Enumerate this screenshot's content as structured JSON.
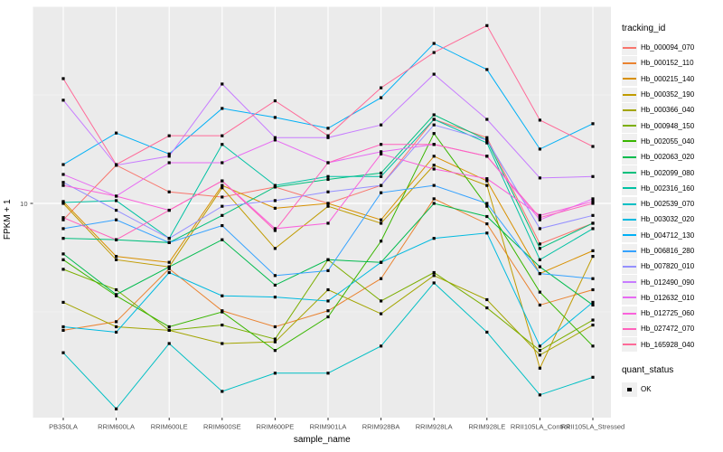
{
  "chart_data": {
    "type": "line",
    "title": "",
    "xlabel": "sample_name",
    "ylabel": "FPKM + 1",
    "y_scale": "log10",
    "y_tick_labels": [
      "10"
    ],
    "y_tick_values": [
      10
    ],
    "ylim_approx": [
      1.03,
      80
    ],
    "grid": true,
    "panel_bg": "#EBEBEB",
    "grid_color": "#FFFFFF",
    "tick_color": "#333333",
    "tick_label_color": "#4D4D4D",
    "point_shape": "square",
    "point_color": "#000000",
    "categories": [
      "PB350LA",
      "RRIM600LA",
      "RRIM600LE",
      "RRIM600SE",
      "RRIM600PE",
      "RRIM901LA",
      "RRIM928BA",
      "RRIM928LA",
      "RRIM928LE",
      "RRII105LA_Control",
      "RRII105LA_Stressed"
    ],
    "legend": {
      "title": "tracking_id",
      "position": "right"
    },
    "quant_status": {
      "title": "quant_status",
      "items": [
        {
          "label": "OK",
          "shape": "square",
          "color": "#000000"
        }
      ]
    },
    "series": [
      {
        "name": "Hb_000094_070",
        "color": "#F8766D",
        "values": [
          8.4,
          15.0,
          11.3,
          10.7,
          11.9,
          10.0,
          12.1,
          24.4,
          20.1,
          6.5,
          8.1
        ]
      },
      {
        "name": "Hb_000152_110",
        "color": "#EA8331",
        "values": [
          2.6,
          2.85,
          5.0,
          3.2,
          2.7,
          3.2,
          4.5,
          10.5,
          8.05,
          3.4,
          4.0
        ]
      },
      {
        "name": "Hb_000215_140",
        "color": "#D89000",
        "values": [
          10.2,
          5.7,
          5.35,
          12.1,
          9.5,
          10.0,
          8.4,
          16.5,
          12.7,
          4.75,
          6.05
        ]
      },
      {
        "name": "Hb_000352_190",
        "color": "#C09B00",
        "values": [
          10.0,
          5.5,
          5.1,
          11.8,
          6.2,
          9.7,
          8.1,
          15.0,
          12.1,
          1.74,
          5.7
        ]
      },
      {
        "name": "Hb_000366_040",
        "color": "#A3A500",
        "values": [
          3.5,
          2.7,
          2.6,
          2.26,
          2.3,
          4.0,
          3.1,
          4.65,
          3.6,
          2.0,
          2.75
        ]
      },
      {
        "name": "Hb_000948_150",
        "color": "#7CAE00",
        "values": [
          4.97,
          4.0,
          2.6,
          2.75,
          2.37,
          5.5,
          3.55,
          4.8,
          3.3,
          2.1,
          2.9
        ]
      },
      {
        "name": "Hb_002055_040",
        "color": "#39B600",
        "values": [
          5.5,
          3.75,
          2.7,
          3.16,
          2.1,
          3.0,
          6.7,
          21.0,
          9.7,
          3.9,
          2.2
        ]
      },
      {
        "name": "Hb_002063_020",
        "color": "#00BB4E",
        "values": [
          5.85,
          3.8,
          5.1,
          6.8,
          4.2,
          5.5,
          5.35,
          10.0,
          8.7,
          5.1,
          3.4
        ]
      },
      {
        "name": "Hb_002099_080",
        "color": "#00BF7D",
        "values": [
          6.9,
          6.8,
          6.6,
          8.8,
          11.9,
          12.9,
          13.8,
          25.6,
          19.6,
          6.2,
          8.1
        ]
      },
      {
        "name": "Hb_002316_160",
        "color": "#00C1A3",
        "values": [
          10.1,
          10.3,
          6.9,
          18.7,
          12.1,
          13.3,
          13.3,
          24.4,
          19.0,
          5.5,
          7.65
        ]
      },
      {
        "name": "Hb_002539_070",
        "color": "#00BFC4",
        "values": [
          2.05,
          1.13,
          2.26,
          1.36,
          1.65,
          1.65,
          2.2,
          4.3,
          2.55,
          1.31,
          1.58
        ]
      },
      {
        "name": "Hb_003032_020",
        "color": "#00BAE0",
        "values": [
          2.7,
          2.55,
          4.8,
          3.75,
          3.7,
          3.55,
          5.35,
          6.9,
          7.3,
          2.2,
          3.5
        ]
      },
      {
        "name": "Hb_004712_130",
        "color": "#00B0F6",
        "values": [
          15.1,
          21.1,
          16.9,
          27.4,
          24.9,
          22.2,
          30.7,
          54.6,
          41.4,
          17.8,
          23.3
        ]
      },
      {
        "name": "Hb_006816_280",
        "color": "#35A2FF",
        "values": [
          7.65,
          8.4,
          6.6,
          7.9,
          4.65,
          4.9,
          11.2,
          12.1,
          10.0,
          4.75,
          4.5
        ]
      },
      {
        "name": "Hb_007820_010",
        "color": "#9590FF",
        "values": [
          12.5,
          9.3,
          6.9,
          9.7,
          10.3,
          11.3,
          12.1,
          23.0,
          19.6,
          7.65,
          8.8
        ]
      },
      {
        "name": "Hb_012490_090",
        "color": "#C77CFF",
        "values": [
          29.9,
          15.0,
          16.5,
          35.5,
          20.1,
          20.1,
          23.0,
          39.4,
          24.4,
          13.1,
          13.3
        ]
      },
      {
        "name": "Hb_012632_010",
        "color": "#E76BF3",
        "values": [
          13.6,
          10.8,
          15.4,
          15.4,
          19.6,
          15.4,
          17.3,
          18.7,
          16.5,
          8.4,
          10.5
        ]
      },
      {
        "name": "Hb_012725_060",
        "color": "#FA62DB",
        "values": [
          12.1,
          10.8,
          9.3,
          12.7,
          7.65,
          8.1,
          16.9,
          14.4,
          13.0,
          8.8,
          10.2
        ]
      },
      {
        "name": "Hb_027472_070",
        "color": "#FF62BC",
        "values": [
          8.6,
          6.8,
          9.3,
          12.7,
          7.5,
          15.4,
          18.7,
          18.7,
          16.5,
          8.6,
          10.0
        ]
      },
      {
        "name": "Hb_165928_040",
        "color": "#FF6A98",
        "values": [
          37.6,
          15.1,
          20.5,
          20.5,
          29.7,
          20.5,
          34.1,
          49.6,
          66.0,
          24.2,
          18.3
        ]
      }
    ]
  }
}
